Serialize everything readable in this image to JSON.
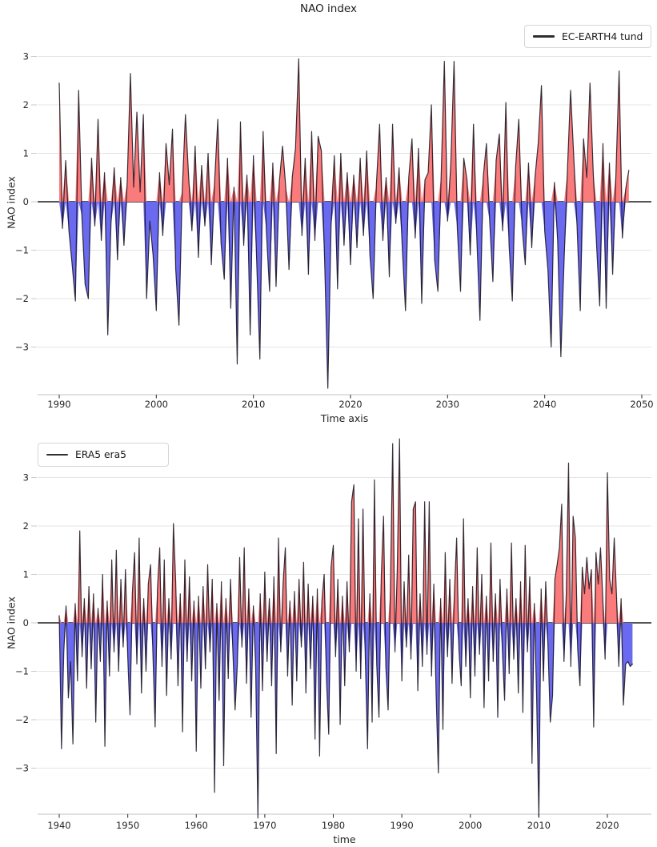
{
  "figure": {
    "title": "NAO index"
  },
  "chart_data": [
    {
      "type": "area",
      "title": "NAO index",
      "xlabel": "Time axis",
      "ylabel": "NAO index",
      "legend_position": "upper right",
      "grid": "horizontal",
      "x_start": 1990,
      "points_per_year": 3,
      "xlim": [
        1987.8,
        2051.0
      ],
      "ylim": [
        -3.98,
        3.95
      ],
      "x_ticks": [
        1990,
        2000,
        2010,
        2020,
        2030,
        2040,
        2050
      ],
      "x_tick_labels": [
        "1990",
        "2000",
        "2010",
        "2020",
        "2030",
        "2040",
        "2050"
      ],
      "y_ticks": [
        3,
        2,
        1,
        0,
        -1,
        -2,
        -3
      ],
      "y_tick_labels": [
        "3",
        "2",
        "1",
        "0",
        "−1",
        "−2",
        "−3"
      ],
      "colors": {
        "fill_positive": "#f97b7b",
        "fill_negative": "#6a6af0",
        "line": "#18101c",
        "zero_line": "#3d3d3d",
        "grid": "#e4e4e4",
        "spine": "#cfcfcf",
        "x_tick": "#3c3c3c",
        "y_tick": "#c9c9c9",
        "text": "#262626"
      },
      "series": [
        {
          "name": "EC-EARTH4 tund",
          "values": [
            2.45,
            -0.55,
            0.85,
            -0.6,
            -1.3,
            -2.05,
            2.3,
            -0.3,
            -1.7,
            -2.0,
            0.9,
            -0.5,
            1.7,
            -0.8,
            0.6,
            -2.75,
            -0.45,
            0.7,
            -1.2,
            0.5,
            -0.9,
            0.4,
            2.65,
            0.3,
            1.85,
            0.2,
            1.8,
            -2.0,
            -0.4,
            -1.1,
            -2.25,
            0.6,
            -0.7,
            1.2,
            0.35,
            1.5,
            -1.4,
            -2.55,
            0.2,
            1.8,
            0.5,
            -0.6,
            1.15,
            -1.15,
            0.75,
            -0.5,
            1.0,
            -1.3,
            0.4,
            1.7,
            -0.85,
            -1.6,
            0.9,
            -2.2,
            0.3,
            -3.35,
            1.65,
            -0.9,
            0.55,
            -2.75,
            0.95,
            -1.2,
            -3.25,
            1.45,
            -0.6,
            -1.85,
            0.8,
            -1.75,
            0.4,
            1.15,
            0.3,
            -1.4,
            0.5,
            1.1,
            2.95,
            -0.7,
            0.9,
            -1.5,
            1.45,
            -0.8,
            1.35,
            1.05,
            -1.2,
            -3.85,
            -0.5,
            0.95,
            -1.8,
            1.0,
            -0.9,
            0.6,
            -1.3,
            0.55,
            -0.95,
            0.9,
            -0.7,
            1.05,
            -1.1,
            -2.0,
            0.35,
            1.6,
            -0.8,
            0.5,
            -1.55,
            1.6,
            -0.45,
            0.7,
            -0.95,
            -2.25,
            0.5,
            1.3,
            -0.75,
            1.1,
            -2.1,
            0.45,
            0.6,
            2.0,
            -1.2,
            -1.85,
            0.5,
            2.9,
            -0.4,
            0.8,
            2.9,
            -0.55,
            -1.85,
            0.9,
            0.45,
            -1.1,
            1.6,
            -0.7,
            -2.45,
            0.5,
            1.2,
            -0.4,
            -1.65,
            0.85,
            1.4,
            -0.6,
            2.05,
            -0.9,
            -2.05,
            0.7,
            1.7,
            -0.5,
            -1.3,
            0.8,
            -0.95,
            0.5,
            1.2,
            2.4,
            -0.6,
            -1.4,
            -3.0,
            0.4,
            -0.8,
            -3.2,
            -1.2,
            0.6,
            2.3,
            0.9,
            -0.5,
            -2.25,
            1.3,
            0.5,
            2.45,
            0.6,
            -0.85,
            -2.15,
            1.2,
            -2.2,
            0.8,
            -1.5,
            0.55,
            2.7,
            -0.75,
            0.25,
            0.65
          ]
        }
      ]
    },
    {
      "type": "area",
      "title": "",
      "xlabel": "time",
      "ylabel": "NAO index",
      "legend_position": "upper left",
      "grid": "horizontal",
      "x_start": 1940,
      "points_per_year": 3,
      "xlim": [
        1936.8,
        2026.4
      ],
      "ylim": [
        -3.95,
        3.95
      ],
      "x_ticks": [
        1940,
        1950,
        1960,
        1970,
        1980,
        1990,
        2000,
        2010,
        2020
      ],
      "x_tick_labels": [
        "1940",
        "1950",
        "1960",
        "1970",
        "1980",
        "1990",
        "2000",
        "2010",
        "2020"
      ],
      "y_ticks": [
        3,
        2,
        1,
        0,
        -1,
        -2,
        -3
      ],
      "y_tick_labels": [
        "3",
        "2",
        "1",
        "0",
        "−1",
        "−2",
        "−3"
      ],
      "colors": {
        "fill_positive": "#f97b7b",
        "fill_negative": "#6a6af0",
        "line": "#18101c",
        "zero_line": "#3d3d3d",
        "grid": "#e4e4e4",
        "spine": "#cfcfcf",
        "x_tick": "#3c3c3c",
        "y_tick": "#c9c9c9",
        "text": "#262626"
      },
      "series": [
        {
          "name": "ERA5 era5",
          "values": [
            0.15,
            -2.6,
            -0.6,
            0.35,
            -1.55,
            -0.8,
            -2.5,
            0.4,
            -1.2,
            1.9,
            -0.7,
            0.5,
            -1.35,
            0.75,
            -0.95,
            0.6,
            -2.05,
            0.3,
            -0.8,
            1.0,
            -2.55,
            0.45,
            -1.1,
            1.3,
            -0.6,
            1.5,
            -1.0,
            0.9,
            -0.5,
            1.1,
            -0.7,
            -1.9,
            0.6,
            1.45,
            -0.85,
            1.75,
            -1.45,
            0.5,
            -1.0,
            0.8,
            1.2,
            -0.6,
            -2.15,
            0.7,
            1.55,
            -0.9,
            1.3,
            -1.5,
            0.5,
            -0.75,
            2.05,
            0.85,
            -1.3,
            0.6,
            -2.25,
            1.3,
            -0.8,
            0.95,
            -1.2,
            0.45,
            -2.65,
            0.55,
            -1.35,
            0.75,
            -0.95,
            1.2,
            -0.6,
            0.9,
            -3.5,
            0.4,
            -1.6,
            0.85,
            -2.95,
            0.5,
            -1.15,
            0.9,
            -0.55,
            -1.8,
            -0.85,
            1.35,
            -0.5,
            1.55,
            -1.25,
            0.7,
            -1.95,
            0.35,
            -0.9,
            -4.03,
            0.6,
            -1.4,
            1.05,
            -0.8,
            0.5,
            -1.3,
            0.95,
            -2.7,
            1.75,
            -0.6,
            0.8,
            1.55,
            -1.1,
            0.45,
            -1.7,
            0.65,
            -1.2,
            0.9,
            -0.5,
            1.25,
            -1.45,
            0.8,
            -0.95,
            0.55,
            -2.4,
            0.7,
            -2.75,
            0.45,
            1.0,
            -1.15,
            -2.3,
            1.15,
            1.6,
            -0.7,
            0.9,
            -2.1,
            0.55,
            -1.3,
            0.85,
            -0.6,
            2.5,
            2.85,
            -1.0,
            2.15,
            -1.15,
            2.35,
            -0.7,
            -2.6,
            0.6,
            -2.05,
            2.95,
            -0.85,
            -1.95,
            0.95,
            2.2,
            -0.9,
            -1.8,
            0.7,
            3.7,
            -0.6,
            1.1,
            3.8,
            -1.2,
            0.85,
            -0.5,
            1.4,
            -0.75,
            2.35,
            2.5,
            -1.4,
            0.6,
            -0.9,
            2.5,
            -0.65,
            2.5,
            -1.1,
            0.8,
            -1.45,
            -3.1,
            0.5,
            -2.2,
            1.45,
            -0.7,
            0.9,
            -1.25,
            0.6,
            1.75,
            -0.55,
            -1.3,
            2.15,
            -0.9,
            0.5,
            -1.55,
            0.75,
            -1.1,
            1.55,
            -0.65,
            1.0,
            -1.75,
            0.55,
            -1.2,
            1.65,
            -0.8,
            0.6,
            -1.95,
            0.9,
            -0.55,
            -1.6,
            0.7,
            -1.05,
            1.65,
            -0.75,
            0.5,
            -1.45,
            0.85,
            -1.85,
            1.6,
            -0.6,
            0.95,
            -2.9,
            0.4,
            -1.5,
            -4.0,
            0.7,
            -1.2,
            0.85,
            -0.5,
            -2.05,
            -1.5,
            0.9,
            1.2,
            1.55,
            2.45,
            -0.8,
            0.6,
            3.3,
            -0.9,
            2.2,
            1.75,
            -0.55,
            -1.3,
            1.15,
            0.6,
            1.35,
            0.7,
            1.1,
            -2.15,
            1.45,
            0.8,
            1.55,
            0.5,
            -0.75,
            3.1,
            0.9,
            0.6,
            1.75,
            0.55,
            -0.9,
            0.5,
            -1.7,
            -0.85,
            -0.8,
            -0.9,
            -0.85
          ]
        }
      ]
    }
  ]
}
